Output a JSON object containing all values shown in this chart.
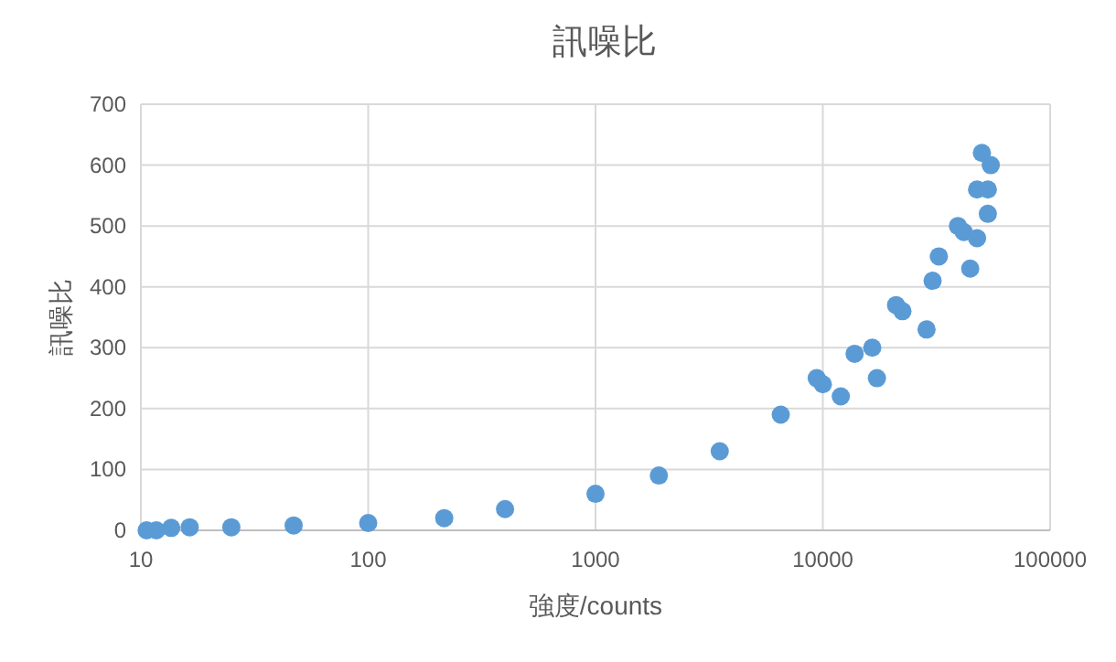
{
  "chart_data": {
    "type": "scatter",
    "title": "訊噪比",
    "xlabel": "強度/counts",
    "ylabel": "訊噪比",
    "log": "x",
    "grid": true,
    "marker": "circle",
    "xlim": [
      10,
      100000
    ],
    "ylim": [
      0,
      700
    ],
    "xticks": [
      10,
      100,
      1000,
      10000,
      100000
    ],
    "yticks": [
      0,
      100,
      200,
      300,
      400,
      500,
      600,
      700
    ],
    "series": [
      {
        "color": "#5b9bd5",
        "x": [
          10.6,
          11.7,
          13.6,
          16.4,
          25,
          47,
          100,
          216,
          400,
          1000,
          1900,
          3520,
          6530,
          9400,
          10000,
          12000,
          13800,
          16500,
          17300,
          21000,
          22400,
          28600,
          30400,
          32400,
          39300,
          41700,
          44500,
          47700,
          47700,
          50100,
          53200,
          53200,
          54800
        ],
        "values": [
          0,
          0,
          4,
          5,
          5,
          8,
          12,
          20,
          35,
          60,
          90,
          130,
          190,
          250,
          240,
          220,
          290,
          300,
          250,
          370,
          360,
          330,
          410,
          450,
          500,
          490,
          430,
          560,
          480,
          620,
          560,
          520,
          600
        ]
      }
    ]
  }
}
